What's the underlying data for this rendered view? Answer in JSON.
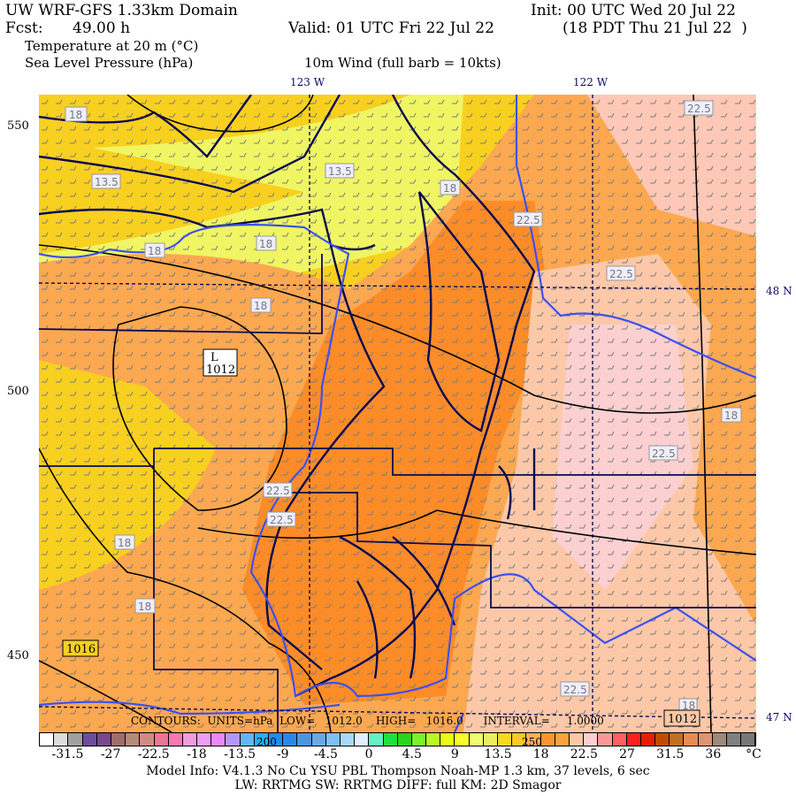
{
  "header": {
    "title": "UW WRF-GFS 1.33km Domain",
    "init": "Init: 00 UTC Wed 20 Jul 22",
    "fcst_label": "Fcst:",
    "fcst_value": "49.00 h",
    "valid": "Valid: 01 UTC Fri 22 Jul 22",
    "local": "(18 PDT Thu 21 Jul 22  )",
    "field1": "Temperature at 20 m (°C)",
    "field2": "Sea Level Pressure (hPa)",
    "field3": "10m Wind (full barb = 10kts)"
  },
  "axes": {
    "lon_labels": [
      "123 W",
      "122 W"
    ],
    "lat_labels": [
      "48 N",
      "47 N"
    ],
    "y_ticks": [
      "550",
      "500",
      "450"
    ]
  },
  "map": {
    "contour_labels": [
      "18",
      "13.5",
      "13.5",
      "18",
      "18",
      "18",
      "18",
      "18",
      "22.5",
      "22.5",
      "22.5",
      "18",
      "22.5",
      "22.5",
      "22.5",
      "18",
      "18",
      "22.5"
    ],
    "low_label": "L",
    "low_value": "1012",
    "isobar_labels": [
      "1016",
      "1012"
    ],
    "contour_info": "CONTOURS:  UNITS=hPa  LOW=   1012.0    HIGH=   1016.0      INTERVAL=     1.0000",
    "bar_overlay_labels": [
      "200",
      "250"
    ],
    "colors": {
      "land_warm": "#f8d020",
      "orange": "#fca850",
      "dark_orange": "#fc8c28",
      "peach": "#fcc8a8",
      "pink": "#fcd0d0",
      "yellow": "#eefc70",
      "coast": "#0a0a50",
      "river": "#3c50f0",
      "isobar": "#000000",
      "isotherm": "#808090"
    }
  },
  "colorbar": {
    "colors": [
      "#ffffff",
      "#dcdcdc",
      "#a0a0a0",
      "#6a4f9c",
      "#7a4690",
      "#9e6e6a",
      "#b48c7a",
      "#d08c84",
      "#ee7494",
      "#f878b4",
      "#f49ae0",
      "#f09cf8",
      "#e88af8",
      "#b496f8",
      "#64b4fa",
      "#28b0f8",
      "#1e8cf0",
      "#2a88ec",
      "#4a96de",
      "#6ca8e4",
      "#7cc0f4",
      "#a8d8fa",
      "#e0f0fc",
      "#60f4c4",
      "#20e040",
      "#2ad41e",
      "#7af030",
      "#b8f828",
      "#e8fc14",
      "#f8fc2c",
      "#eefc70",
      "#ecec64",
      "#f8d820",
      "#fcc828",
      "#fcb060",
      "#fc9430",
      "#fca040",
      "#fcc8a8",
      "#fcd0d0",
      "#fc9898",
      "#fc6060",
      "#fc2020",
      "#e81c00",
      "#c04c00",
      "#c07020",
      "#e88c54",
      "#dc9474",
      "#a08878",
      "#808080",
      "#787878"
    ],
    "labels": [
      "-31.5",
      "-27",
      "-22.5",
      "-18",
      "-13.5",
      "-9",
      "-4.5",
      "0",
      "4.5",
      "9",
      "13.5",
      "18",
      "22.5",
      "27",
      "31.5",
      "36"
    ],
    "unit": "°C"
  },
  "footer": {
    "line1": "Model Info: V4.1.3    No Cu    YSU PBL   Thompson     Noah-MP    1.3 km,  37 levels,     6 sec",
    "line2": "LW: RRTMG SW: RRTMG    DIFF: full    KM: 2D Smagor"
  }
}
